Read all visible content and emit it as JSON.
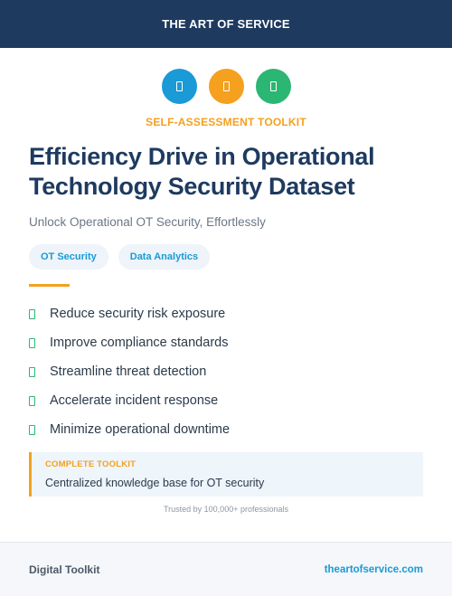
{
  "header": {
    "brand": "THE ART OF SERVICE",
    "color": "#1e3a5f"
  },
  "icons": [
    {
      "name": "document-icon",
      "color": "#1a9ad6"
    },
    {
      "name": "document-icon",
      "color": "#f5a01f"
    },
    {
      "name": "document-icon",
      "color": "#2bb673"
    }
  ],
  "hero": {
    "eyebrow": "SELF-ASSESSMENT TOOLKIT",
    "title": "Efficiency Drive in Operational Technology Security Dataset",
    "subtitle": "Unlock Operational OT Security, Effortlessly"
  },
  "tags": [
    "OT Security",
    "Data Analytics"
  ],
  "benefits": [
    "Reduce security risk exposure",
    "Improve compliance standards",
    "Streamline threat detection",
    "Accelerate incident response",
    "Minimize operational downtime"
  ],
  "callout": {
    "label": "COMPLETE TOOLKIT",
    "text": "Centralized knowledge base for OT security"
  },
  "trusted": "Trusted by 100,000+ professionals",
  "footer": {
    "left": "Digital Toolkit",
    "right": "theartofservice.com"
  },
  "colors": {
    "accent": "#f5a01f",
    "blue": "#1a9ad6",
    "green": "#2bb673"
  }
}
